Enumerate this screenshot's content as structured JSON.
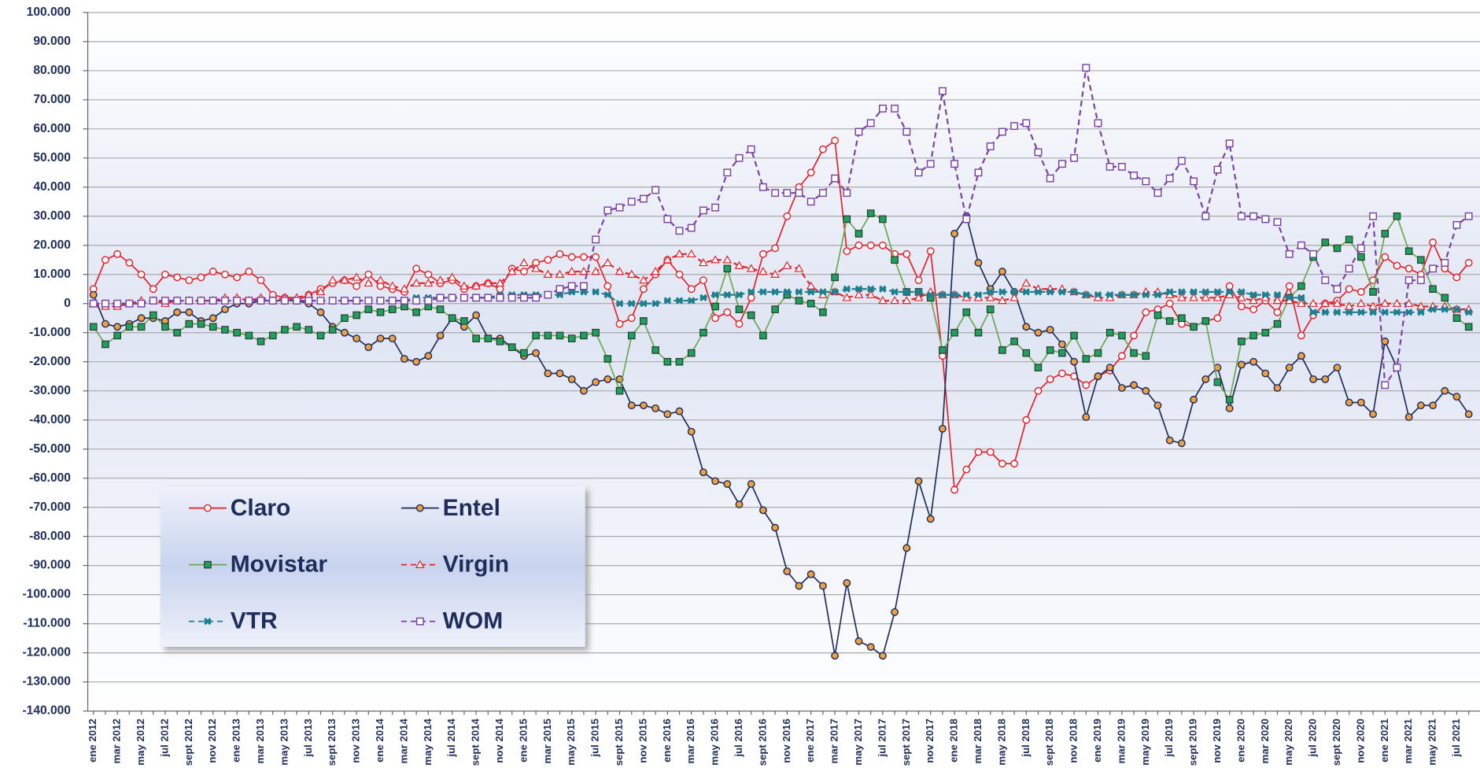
{
  "chart_data": {
    "type": "line",
    "categories": [
      "ene 2012",
      null,
      "mar 2012",
      null,
      "may 2012",
      null,
      "jul 2012",
      null,
      "sept 2012",
      null,
      "nov 2012",
      null,
      "ene 2013",
      null,
      "mar 2013",
      null,
      "may 2013",
      null,
      "jul 2013",
      null,
      "sept 2013",
      null,
      "nov 2013",
      null,
      "ene 2014",
      null,
      "mar 2014",
      null,
      "may 2014",
      null,
      "jul 2014",
      null,
      "sept 2014",
      null,
      "nov 2014",
      null,
      "ene 2015",
      null,
      "mar 2015",
      null,
      "may 2015",
      null,
      "jul 2015",
      null,
      "sept 2015",
      null,
      "nov 2015",
      null,
      "ene 2016",
      null,
      "mar 2016",
      null,
      "may 2016",
      null,
      "jul 2016",
      null,
      "sept 2016",
      null,
      "nov 2016",
      null,
      "ene 2017",
      null,
      "mar 2017",
      null,
      "may 2017",
      null,
      "jul 2017",
      null,
      "sept 2017",
      null,
      "nov 2017",
      null,
      "ene 2018",
      null,
      "mar 2018",
      null,
      "may 2018",
      null,
      "jul 2018",
      null,
      "sept 2018",
      null,
      "nov 2018",
      null,
      "ene 2019",
      null,
      "mar 2019",
      null,
      "may 2019",
      null,
      "jul 2019",
      null,
      "sept 2019",
      null,
      "nov 2019",
      null,
      "ene 2020",
      null,
      "mar 2020",
      null,
      "may 2020",
      null,
      "jul 2020",
      null,
      "sept 2020",
      null,
      "nov 2020",
      null,
      "ene 2021",
      null,
      "mar 2021",
      null,
      "may 2021",
      null,
      "jul 2021",
      null
    ],
    "series": [
      {
        "name": "Claro",
        "color": "#e8202a",
        "marker": "circle-open",
        "dashed": false,
        "values": [
          5000,
          15000,
          17000,
          14000,
          10000,
          5000,
          10000,
          9000,
          8000,
          9000,
          11000,
          10000,
          9000,
          11000,
          8000,
          3000,
          2000,
          1000,
          3000,
          5000,
          7000,
          8000,
          6000,
          10000,
          6000,
          5000,
          4000,
          12000,
          10000,
          7000,
          8000,
          5000,
          6000,
          7000,
          5000,
          12000,
          11000,
          14000,
          15000,
          17000,
          16000,
          16000,
          16000,
          6000,
          -7000,
          -5000,
          5000,
          10000,
          15000,
          10000,
          5000,
          8000,
          -5000,
          -3000,
          -7000,
          2000,
          17000,
          19000,
          30000,
          40000,
          45000,
          53000,
          56000,
          18000,
          20000,
          20000,
          20000,
          17000,
          17000,
          8000,
          18000,
          -18000,
          -64000,
          -57000,
          -51000,
          -51000,
          -55000,
          -55000,
          -40000,
          -30000,
          -26000,
          -24000,
          -25000,
          -28000,
          -25000,
          -23000,
          -18000,
          -11000,
          -3000,
          -2000,
          0,
          -7000,
          -8000,
          -6000,
          -5000,
          6000,
          -1000,
          -2000,
          1000,
          -3000,
          6000,
          -11000,
          -4000,
          0,
          1000,
          5000,
          4000,
          8000,
          16000,
          13000,
          12000,
          10000,
          21000,
          12000,
          9000,
          14000
        ]
      },
      {
        "name": "Entel",
        "color": "#1f2d5a",
        "marker": "circle-filled",
        "dashed": false,
        "values": [
          3000,
          -7000,
          -8000,
          -7000,
          -5000,
          -5000,
          -6000,
          -3000,
          -3000,
          -6000,
          -5000,
          -2000,
          0,
          0,
          1000,
          1000,
          1000,
          1000,
          0,
          -3000,
          -8000,
          -10000,
          -12000,
          -15000,
          -12000,
          -12000,
          -19000,
          -20000,
          -18000,
          -11000,
          -5000,
          -8000,
          -4000,
          -12000,
          -12000,
          -15000,
          -18000,
          -17000,
          -24000,
          -24000,
          -26000,
          -30000,
          -27000,
          -26000,
          -26000,
          -35000,
          -35000,
          -36000,
          -38000,
          -37000,
          -44000,
          -58000,
          -61000,
          -62000,
          -69000,
          -62000,
          -71000,
          -77000,
          -92000,
          -97000,
          -93000,
          -97000,
          -121000,
          -96000,
          -116000,
          -118000,
          -121000,
          -106000,
          -84000,
          -61000,
          -74000,
          -43000,
          24000,
          30000,
          14000,
          5000,
          11000,
          4000,
          -8000,
          -10000,
          -9000,
          -14000,
          -20000,
          -39000,
          -25000,
          -22000,
          -29000,
          -28000,
          -30000,
          -35000,
          -47000,
          -48000,
          -33000,
          -26000,
          -22000,
          -36000,
          -21000,
          -20000,
          -24000,
          -29000,
          -22000,
          -18000,
          -26000,
          -26000,
          -22000,
          -34000,
          -34000,
          -38000,
          -13000,
          -22000,
          -39000,
          -35000,
          -35000,
          -30000,
          -32000,
          -38000
        ]
      },
      {
        "name": "Movistar",
        "color": "#6aa84f",
        "marker": "square-filled",
        "dashed": false,
        "values": [
          -8000,
          -14000,
          -11000,
          -8000,
          -8000,
          -4000,
          -8000,
          -10000,
          -7000,
          -7000,
          -8000,
          -9000,
          -10000,
          -11000,
          -13000,
          -11000,
          -9000,
          -8000,
          -9000,
          -11000,
          -9000,
          -5000,
          -4000,
          -2000,
          -3000,
          -2000,
          -1000,
          -3000,
          -1000,
          -2000,
          -5000,
          -6000,
          -12000,
          -12000,
          -13000,
          -15000,
          -17000,
          -11000,
          -11000,
          -11000,
          -12000,
          -11000,
          -10000,
          -19000,
          -30000,
          -11000,
          -6000,
          -16000,
          -20000,
          -20000,
          -17000,
          -10000,
          -1000,
          12000,
          -2000,
          -4000,
          -11000,
          -2000,
          3000,
          1000,
          0,
          -3000,
          9000,
          29000,
          24000,
          31000,
          29000,
          15000,
          4000,
          4000,
          2000,
          -16000,
          -10000,
          -3000,
          -10000,
          -2000,
          -16000,
          -13000,
          -17000,
          -22000,
          -16000,
          -17000,
          -11000,
          -19000,
          -17000,
          -10000,
          -11000,
          -17000,
          -18000,
          -4000,
          -6000,
          -5000,
          -8000,
          -6000,
          -27000,
          -33000,
          -13000,
          -11000,
          -10000,
          -7000,
          2000,
          6000,
          16000,
          21000,
          19000,
          22000,
          16000,
          4000,
          24000,
          30000,
          18000,
          15000,
          5000,
          2000,
          -5000,
          -8000
        ]
      },
      {
        "name": "Virgin",
        "color": "#e8202a",
        "marker": "triangle-open",
        "dashed": true,
        "values": [
          0,
          -1000,
          -1000,
          0,
          1000,
          1000,
          0,
          1000,
          1000,
          1000,
          1000,
          2000,
          2000,
          1000,
          2000,
          1000,
          2000,
          2000,
          3000,
          4000,
          8000,
          8000,
          9000,
          7000,
          8000,
          6000,
          5000,
          7000,
          7000,
          8000,
          9000,
          6000,
          6000,
          7000,
          7000,
          11000,
          14000,
          12000,
          10000,
          10000,
          11000,
          11000,
          11000,
          14000,
          11000,
          10000,
          8000,
          11000,
          15000,
          17000,
          17000,
          14000,
          15000,
          15000,
          13000,
          12000,
          11000,
          10000,
          13000,
          12000,
          6000,
          3000,
          4000,
          2000,
          3000,
          3000,
          1000,
          1000,
          1000,
          2000,
          4000,
          3000,
          3000,
          2000,
          2000,
          2000,
          1000,
          2000,
          7000,
          5000,
          5000,
          5000,
          4000,
          3000,
          2000,
          2000,
          3000,
          3000,
          4000,
          4000,
          3000,
          2000,
          2000,
          2000,
          2000,
          3000,
          2000,
          1000,
          2000,
          1000,
          1000,
          0,
          0,
          0,
          0,
          -1000,
          0,
          -1000,
          0,
          0,
          0,
          -1000,
          -1000,
          -1000,
          -2000,
          -2000
        ]
      },
      {
        "name": "VTR",
        "color": "#1f7f8f",
        "marker": "star",
        "dashed": true,
        "values": [
          0,
          0,
          0,
          0,
          0,
          1000,
          1000,
          1000,
          1000,
          1000,
          1000,
          1000,
          1000,
          1000,
          1000,
          1000,
          1000,
          1000,
          1000,
          1000,
          1000,
          1000,
          1000,
          1000,
          1000,
          1000,
          1000,
          2000,
          2000,
          2000,
          2000,
          2000,
          2000,
          2000,
          3000,
          3000,
          3000,
          3000,
          3000,
          3000,
          4000,
          4000,
          4000,
          3000,
          0,
          0,
          0,
          0,
          1000,
          1000,
          1000,
          2000,
          3000,
          3000,
          3000,
          4000,
          4000,
          4000,
          4000,
          4000,
          4000,
          4000,
          4000,
          5000,
          5000,
          5000,
          5000,
          4000,
          4000,
          4000,
          3000,
          3000,
          3000,
          3000,
          3000,
          4000,
          4000,
          4000,
          4000,
          4000,
          4000,
          4000,
          4000,
          3000,
          3000,
          3000,
          3000,
          3000,
          3000,
          3000,
          4000,
          4000,
          4000,
          4000,
          4000,
          4000,
          4000,
          3000,
          3000,
          3000,
          2000,
          2000,
          -3000,
          -3000,
          -3000,
          -3000,
          -3000,
          -3000,
          -3000,
          -3000,
          -3000,
          -3000,
          -2000,
          -2000,
          -2000,
          -3000
        ]
      },
      {
        "name": "WOM",
        "color": "#7b3fa8",
        "marker": "square-open",
        "dashed": true,
        "values": [
          0,
          0,
          0,
          0,
          0,
          1000,
          1000,
          1000,
          1000,
          1000,
          1000,
          1000,
          1000,
          1000,
          1000,
          1000,
          1000,
          1000,
          1000,
          1000,
          1000,
          1000,
          1000,
          1000,
          1000,
          1000,
          1000,
          1000,
          1000,
          2000,
          2000,
          2000,
          2000,
          2000,
          2000,
          2000,
          2000,
          2000,
          3000,
          5000,
          6000,
          6000,
          22000,
          32000,
          33000,
          35000,
          36000,
          39000,
          29000,
          25000,
          26000,
          32000,
          33000,
          45000,
          50000,
          53000,
          40000,
          38000,
          38000,
          38000,
          35000,
          38000,
          43000,
          38000,
          59000,
          62000,
          67000,
          67000,
          59000,
          45000,
          48000,
          73000,
          48000,
          29000,
          45000,
          54000,
          59000,
          61000,
          62000,
          52000,
          43000,
          48000,
          50000,
          81000,
          62000,
          47000,
          47000,
          44000,
          42000,
          38000,
          43000,
          49000,
          42000,
          30000,
          46000,
          55000,
          30000,
          30000,
          29000,
          28000,
          17000,
          20000,
          17000,
          8000,
          5000,
          12000,
          19000,
          30000,
          -28000,
          -22000,
          8000,
          8000,
          12000,
          14000,
          27000,
          30000
        ]
      }
    ],
    "ylim": [
      -140000,
      100000
    ],
    "yticks": [
      {
        "value": 100000,
        "label": "100.000"
      },
      {
        "value": 90000,
        "label": "90.000"
      },
      {
        "value": 80000,
        "label": "80.000"
      },
      {
        "value": 70000,
        "label": "70.000"
      },
      {
        "value": 60000,
        "label": "60.000"
      },
      {
        "value": 50000,
        "label": "50.000"
      },
      {
        "value": 40000,
        "label": "40.000"
      },
      {
        "value": 30000,
        "label": "30.000"
      },
      {
        "value": 20000,
        "label": "20.000"
      },
      {
        "value": 10000,
        "label": "10.000"
      },
      0,
      {
        "value": -10000,
        "label": "-10.000"
      },
      {
        "value": -20000,
        "label": "-20.000"
      },
      {
        "value": -30000,
        "label": "-30.000"
      },
      {
        "value": -40000,
        "label": "-40.000"
      },
      {
        "value": -50000,
        "label": "-50.000"
      },
      {
        "value": -60000,
        "label": "-60.000"
      },
      {
        "value": -70000,
        "label": "-70.000"
      },
      {
        "value": -80000,
        "label": "-80.000"
      },
      {
        "value": -90000,
        "label": "-90.000"
      },
      {
        "value": -100000,
        "label": "-100.000"
      },
      {
        "value": -110000,
        "label": "-110.000"
      },
      {
        "value": -120000,
        "label": "-120.000"
      },
      {
        "value": -130000,
        "label": "-130.000"
      },
      {
        "value": -140000,
        "label": "-140.000"
      }
    ],
    "grid": true,
    "legend": "lower left"
  }
}
